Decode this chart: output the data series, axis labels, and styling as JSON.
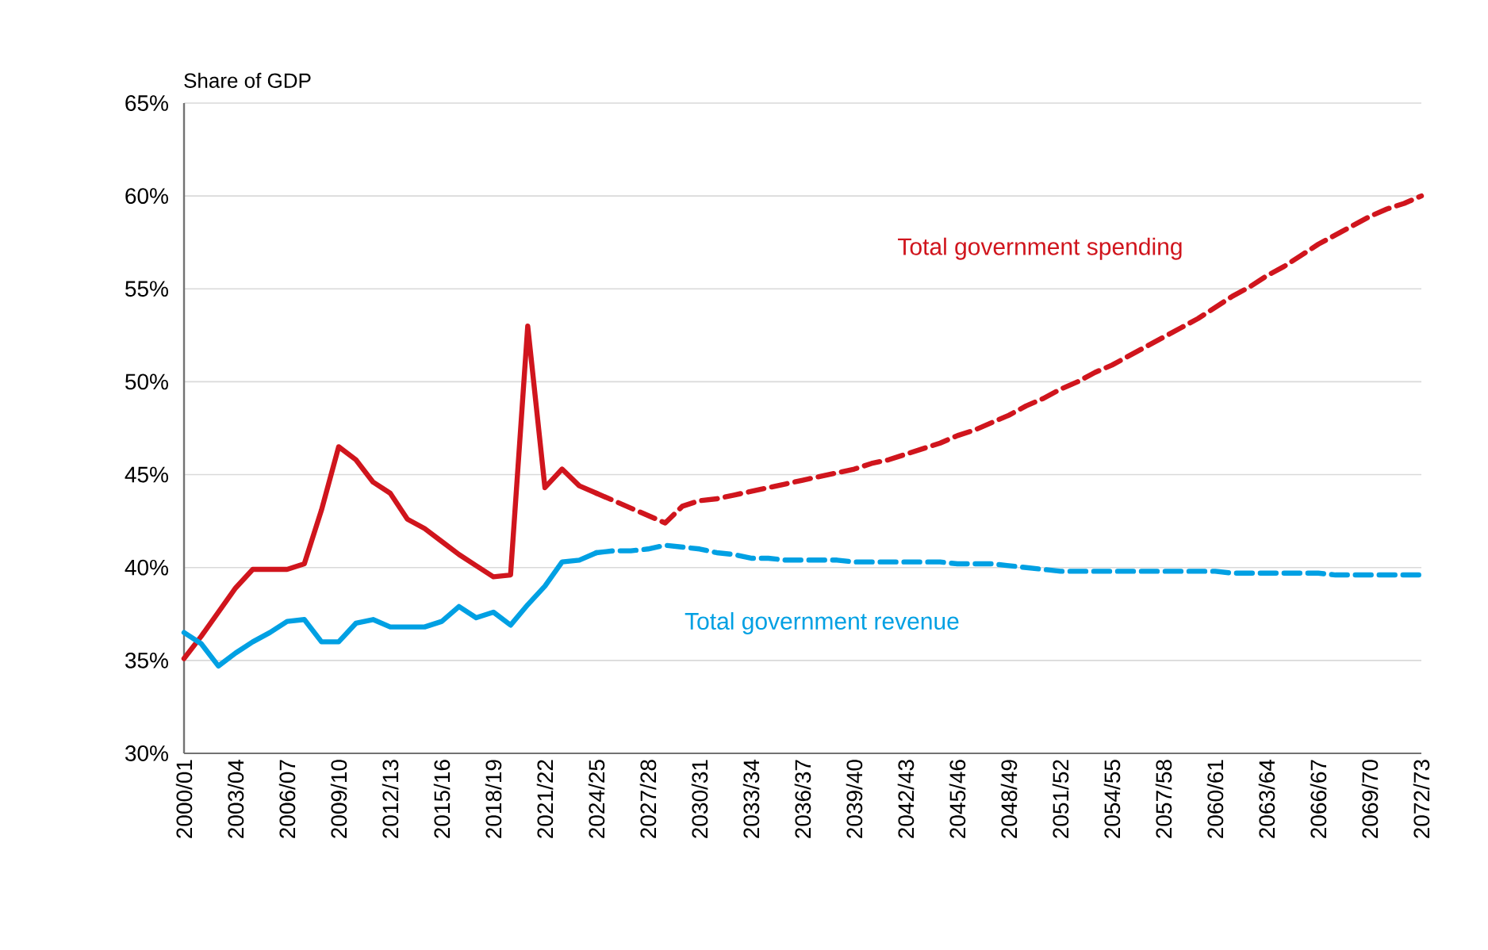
{
  "chart_data": {
    "type": "line",
    "ylabel": "Share of GDP",
    "categories": [
      "2000/01",
      null,
      null,
      "2003/04",
      null,
      null,
      "2006/07",
      null,
      null,
      "2009/10",
      null,
      null,
      "2012/13",
      null,
      null,
      "2015/16",
      null,
      null,
      "2018/19",
      null,
      null,
      "2021/22",
      null,
      null,
      "2024/25",
      null,
      null,
      "2027/28",
      null,
      null,
      "2030/31",
      null,
      null,
      "2033/34",
      null,
      null,
      "2036/37",
      null,
      null,
      "2039/40",
      null,
      null,
      "2042/43",
      null,
      null,
      "2045/46",
      null,
      null,
      "2048/49",
      null,
      null,
      "2051/52",
      null,
      null,
      "2054/55",
      null,
      null,
      "2057/58",
      null,
      null,
      "2060/61",
      null,
      null,
      "2063/64",
      null,
      null,
      "2066/67",
      null,
      null,
      "2069/70",
      null,
      null,
      "2072/73"
    ],
    "ylim": [
      30,
      65
    ],
    "yticks": [
      {
        "value": 30,
        "label": "30%"
      },
      {
        "value": 35,
        "label": "35%"
      },
      {
        "value": 40,
        "label": "40%"
      },
      {
        "value": 45,
        "label": "45%"
      },
      {
        "value": 50,
        "label": "50%"
      },
      {
        "value": 55,
        "label": "55%"
      },
      {
        "value": 60,
        "label": "60%"
      },
      {
        "value": 65,
        "label": "65%"
      }
    ],
    "grid": "y",
    "series": [
      {
        "color": "#d0151d",
        "line_style": "solid",
        "values": [
          35.1,
          36.3,
          37.6,
          38.9,
          39.9,
          39.9,
          39.9,
          40.2,
          43.1,
          46.5,
          45.8,
          44.6,
          44.0,
          42.6,
          42.1,
          41.4,
          40.7,
          40.1,
          39.5,
          39.6,
          53.0,
          44.3,
          45.3,
          44.4,
          44.0,
          null,
          null,
          null,
          null,
          null,
          null,
          null,
          null,
          null,
          null,
          null,
          null,
          null,
          null,
          null,
          null,
          null,
          null,
          null,
          null,
          null,
          null,
          null,
          null,
          null,
          null,
          null,
          null,
          null,
          null,
          null,
          null,
          null,
          null,
          null,
          null,
          null,
          null,
          null,
          null,
          null,
          null,
          null,
          null,
          null,
          null,
          null,
          null
        ]
      },
      {
        "name": "Total government spending",
        "color": "#d0151d",
        "line_style": "dashed",
        "values": [
          null,
          null,
          null,
          null,
          null,
          null,
          null,
          null,
          null,
          null,
          null,
          null,
          null,
          null,
          null,
          null,
          null,
          null,
          null,
          null,
          null,
          null,
          null,
          null,
          44.0,
          43.6,
          43.2,
          42.8,
          42.4,
          43.3,
          43.6,
          43.7,
          43.9,
          44.1,
          44.3,
          44.5,
          44.7,
          44.9,
          45.1,
          45.3,
          45.6,
          45.8,
          46.1,
          46.4,
          46.7,
          47.1,
          47.4,
          47.8,
          48.2,
          48.7,
          49.1,
          49.6,
          50.0,
          50.5,
          50.9,
          51.4,
          51.9,
          52.4,
          52.9,
          53.4,
          54.0,
          54.6,
          55.1,
          55.7,
          56.2,
          56.8,
          57.4,
          57.9,
          58.4,
          58.9,
          59.3,
          59.6,
          60.0
        ]
      },
      {
        "color": "#00a0e3",
        "line_style": "solid",
        "values": [
          36.5,
          35.9,
          34.7,
          35.4,
          36.0,
          36.5,
          37.1,
          37.2,
          36.0,
          36.0,
          37.0,
          37.2,
          36.8,
          36.8,
          36.8,
          37.1,
          37.9,
          37.3,
          37.6,
          36.9,
          38.0,
          39.0,
          40.3,
          40.4,
          40.8,
          null,
          null,
          null,
          null,
          null,
          null,
          null,
          null,
          null,
          null,
          null,
          null,
          null,
          null,
          null,
          null,
          null,
          null,
          null,
          null,
          null,
          null,
          null,
          null,
          null,
          null,
          null,
          null,
          null,
          null,
          null,
          null,
          null,
          null,
          null,
          null,
          null,
          null,
          null,
          null,
          null,
          null,
          null,
          null,
          null,
          null,
          null,
          null
        ]
      },
      {
        "name": "Total government revenue",
        "color": "#00a0e3",
        "line_style": "dashed",
        "values": [
          null,
          null,
          null,
          null,
          null,
          null,
          null,
          null,
          null,
          null,
          null,
          null,
          null,
          null,
          null,
          null,
          null,
          null,
          null,
          null,
          null,
          null,
          null,
          null,
          40.8,
          40.9,
          40.9,
          41.0,
          41.2,
          41.1,
          41.0,
          40.8,
          40.7,
          40.5,
          40.5,
          40.4,
          40.4,
          40.4,
          40.4,
          40.3,
          40.3,
          40.3,
          40.3,
          40.3,
          40.3,
          40.2,
          40.2,
          40.2,
          40.1,
          40.0,
          39.9,
          39.8,
          39.8,
          39.8,
          39.8,
          39.8,
          39.8,
          39.8,
          39.8,
          39.8,
          39.8,
          39.7,
          39.7,
          39.7,
          39.7,
          39.7,
          39.7,
          39.6,
          39.6,
          39.6,
          39.6,
          39.6,
          39.6
        ]
      }
    ]
  }
}
